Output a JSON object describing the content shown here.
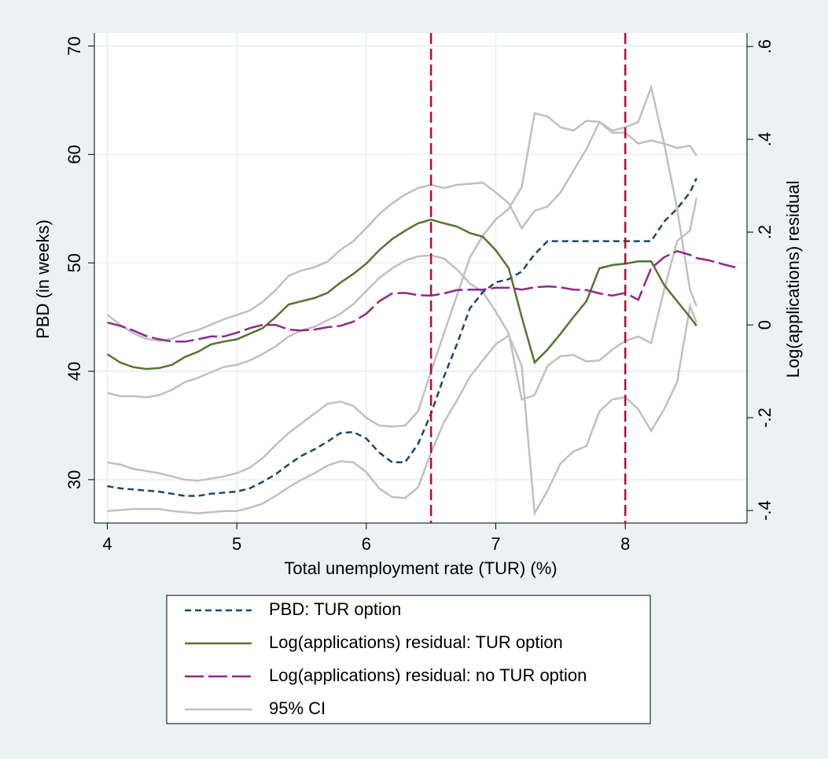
{
  "chart_data": {
    "type": "line",
    "xlabel": "Total unemployment rate (TUR) (%)",
    "ylabel": "PBD (in weeks)",
    "y2label": "Log(applications) residual",
    "xlim": [
      3.9,
      8.94
    ],
    "ylim": [
      26,
      71.2
    ],
    "y2lim": [
      -0.427,
      0.629
    ],
    "xticks": [
      4,
      5,
      6,
      7,
      8
    ],
    "yticks": [
      30,
      40,
      50,
      60,
      70
    ],
    "y2ticks": [
      {
        "value": -0.4,
        "label": "-.4"
      },
      {
        "value": -0.2,
        "label": "-.2"
      },
      {
        "value": 0,
        "label": "0"
      },
      {
        "value": 0.2,
        "label": ".2"
      },
      {
        "value": 0.4,
        "label": ".4"
      },
      {
        "value": 0.6,
        "label": ".6"
      }
    ],
    "grid": true,
    "vlines": [
      6.5,
      8
    ],
    "vline_color": "#c10534",
    "x": [
      4.0,
      4.1,
      4.2,
      4.3,
      4.4,
      4.5,
      4.6,
      4.7,
      4.8,
      4.9,
      5.0,
      5.1,
      5.2,
      5.3,
      5.4,
      5.5,
      5.6,
      5.7,
      5.8,
      5.9,
      6.0,
      6.1,
      6.2,
      6.3,
      6.4,
      6.5,
      6.6,
      6.7,
      6.8,
      6.9,
      7.0,
      7.1,
      7.2,
      7.3,
      7.4,
      7.5,
      7.6,
      7.7,
      7.8,
      7.9,
      8.0,
      8.1,
      8.2,
      8.3,
      8.4,
      8.5,
      8.55,
      8.65,
      8.75,
      8.85
    ],
    "series": [
      {
        "name": "PBD: TUR option",
        "color": "#1a476f",
        "dash": "8,5",
        "axis": "y",
        "values": [
          29.4,
          29.2,
          29.1,
          29.0,
          28.9,
          28.7,
          28.5,
          28.5,
          28.7,
          28.8,
          28.9,
          29.2,
          29.8,
          30.5,
          31.4,
          32.2,
          32.8,
          33.5,
          34.3,
          34.4,
          33.8,
          32.5,
          31.6,
          31.6,
          33.3,
          36.1,
          39.5,
          42.5,
          45.8,
          47.3,
          48.2,
          48.5,
          49.2,
          50.8,
          52,
          52,
          52,
          52,
          52,
          52,
          52,
          52,
          52,
          53.8,
          55,
          56.5,
          57.8,
          null,
          null,
          null
        ]
      },
      {
        "name": "Log(applications) residual: TUR option",
        "color": "#55752f",
        "dash": "none",
        "axis": "y2",
        "values": [
          -0.063,
          -0.081,
          -0.091,
          -0.095,
          -0.093,
          -0.086,
          -0.069,
          -0.058,
          -0.042,
          -0.036,
          -0.031,
          -0.019,
          -0.007,
          0.017,
          0.044,
          0.051,
          0.058,
          0.069,
          0.091,
          0.11,
          0.132,
          0.161,
          0.185,
          0.203,
          0.219,
          0.227,
          0.219,
          0.212,
          0.198,
          0.19,
          0.161,
          0.122,
          0.017,
          -0.081,
          -0.053,
          -0.019,
          0.017,
          0.051,
          0.122,
          0.129,
          0.132,
          0.137,
          0.137,
          0.086,
          0.051,
          0.017,
          -0.002,
          null,
          null,
          null
        ]
      },
      {
        "name": "Log(applications) residual: no TUR option",
        "color": "#90288c",
        "dash": "24,6",
        "axis": "y2",
        "values": [
          0.005,
          -0.002,
          -0.012,
          -0.024,
          -0.031,
          -0.036,
          -0.036,
          -0.031,
          -0.025,
          -0.025,
          -0.017,
          -0.007,
          0,
          0,
          -0.01,
          -0.012,
          -0.01,
          -0.005,
          -0.002,
          0.007,
          0.024,
          0.051,
          0.068,
          0.069,
          0.064,
          0.063,
          0.068,
          0.075,
          0.076,
          0.076,
          0.08,
          0.08,
          0.076,
          0.081,
          0.083,
          0.081,
          0.076,
          0.075,
          0.068,
          0.063,
          0.069,
          0.054,
          0.122,
          0.146,
          0.159,
          0.151,
          0.144,
          0.139,
          0.131,
          0.124
        ]
      },
      {
        "name": "95% CI",
        "color": "#c0c0c0",
        "dash": "none",
        "axis": "y",
        "values": [
          31.6,
          31.4,
          31,
          30.8,
          30.6,
          30.3,
          30,
          29.9,
          30.1,
          30.3,
          30.6,
          31.1,
          32,
          33.2,
          34.3,
          35.2,
          36.1,
          37,
          37.2,
          36.8,
          35.7,
          35.0,
          34.9,
          35.0,
          36.3,
          40,
          43.5,
          47,
          50.5,
          52.5,
          54,
          55,
          57,
          63.8,
          63.5,
          62.5,
          62.2,
          63.1,
          63,
          62.2,
          62.5,
          63,
          66.2,
          61,
          55,
          47.5,
          46,
          null,
          null,
          null
        ]
      },
      {
        "color": "#c0c0c0",
        "dash": "none",
        "axis": "y",
        "values": [
          27.1,
          27.2,
          27.3,
          27.3,
          27.3,
          27.1,
          27,
          26.9,
          27,
          27.1,
          27.1,
          27.4,
          27.8,
          28.5,
          29.3,
          30,
          30.6,
          31.3,
          31.7,
          31.6,
          30.7,
          29.2,
          28.4,
          28.3,
          29.3,
          32.5,
          35.3,
          37.3,
          39.5,
          41.0,
          42.5,
          43.3,
          40.5,
          26.9,
          29,
          31.5,
          32.6,
          33.1,
          36.3,
          37.4,
          37.6,
          36.5,
          34.5,
          36.5,
          39,
          46,
          44.5,
          null,
          null,
          null
        ]
      },
      {
        "color": "#c0c0c0",
        "dash": "none",
        "axis": "y",
        "values": [
          45.2,
          44.3,
          43.5,
          43,
          42.8,
          43,
          43.5,
          43.8,
          44.3,
          44.8,
          45.2,
          45.6,
          46.4,
          47.5,
          48.8,
          49.3,
          49.6,
          50.1,
          51.2,
          52,
          53.2,
          54.5,
          55.5,
          56.3,
          56.9,
          57.2,
          56.9,
          57.2,
          57.3,
          57.4,
          56.5,
          55.5,
          53.2,
          54.8,
          55.2,
          56.5,
          58.5,
          60.5,
          63,
          62,
          62,
          61,
          61.3,
          61,
          60.6,
          60.8,
          59.9,
          null,
          null,
          null
        ]
      },
      {
        "color": "#c0c0c0",
        "dash": "none",
        "axis": "y",
        "values": [
          38,
          37.7,
          37.7,
          37.6,
          37.8,
          38.3,
          39,
          39.4,
          39.9,
          40.4,
          40.6,
          41,
          41.6,
          42.3,
          43.2,
          43.8,
          44.1,
          44.7,
          45.3,
          46.2,
          47.4,
          48.6,
          49.5,
          50.2,
          50.6,
          50.7,
          50.4,
          49.4,
          48.1,
          47.3,
          45.5,
          43.5,
          37.4,
          37.8,
          40.5,
          41.4,
          41.5,
          40.9,
          41,
          42,
          42.8,
          43.2,
          42.6,
          47.5,
          52,
          53,
          56,
          null,
          null,
          null
        ]
      }
    ]
  }
}
